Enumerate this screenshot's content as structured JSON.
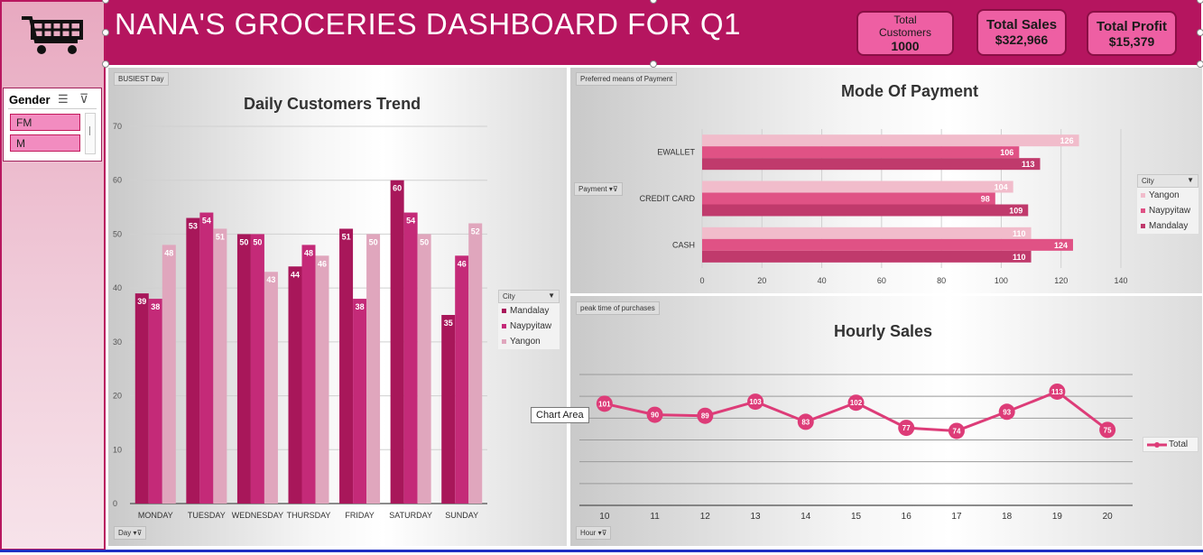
{
  "header": {
    "title": "NANA'S GROCERIES DASHBOARD FOR Q1",
    "kpis": [
      {
        "label": "Total Customers",
        "value": "1000"
      },
      {
        "label": "Total Sales",
        "value": "$322,966"
      },
      {
        "label": "Total Profit",
        "value": "$15,379"
      }
    ]
  },
  "slicer": {
    "title": "Gender",
    "items": [
      "FM",
      "M"
    ]
  },
  "daily_panel": {
    "tag": "BUSIEST  Day",
    "title": "Daily Customers Trend",
    "filter_label": "Day",
    "legend_title": "City"
  },
  "payment_panel": {
    "tag": "Preferred means of Payment",
    "title": "Mode Of Payment",
    "filter_label": "Payment",
    "legend_title": "City"
  },
  "hourly_panel": {
    "tag": "peak time of purchases",
    "title": "Hourly Sales",
    "filter_label": "Hour",
    "legend_label": "Total"
  },
  "tooltip": "Chart Area",
  "colors": {
    "header": "#b5155f",
    "mandalay": "#a8175a",
    "naypyitaw": "#c42a78",
    "yangon": "#e0a6bd",
    "pay_yangon": "#f1bccb",
    "pay_naypyitaw": "#e05285",
    "pay_mandalay": "#c03a6c",
    "line": "#dd3c78"
  },
  "chart_data": [
    {
      "type": "bar",
      "title": "Daily Customers Trend",
      "categories": [
        "MONDAY",
        "TUESDAY",
        "WEDNESDAY",
        "THURSDAY",
        "FRIDAY",
        "SATURDAY",
        "SUNDAY"
      ],
      "series": [
        {
          "name": "Mandalay",
          "values": [
            39,
            53,
            50,
            44,
            51,
            60,
            35
          ]
        },
        {
          "name": "Naypyitaw",
          "values": [
            38,
            54,
            50,
            48,
            38,
            54,
            46
          ]
        },
        {
          "name": "Yangon",
          "values": [
            48,
            51,
            43,
            46,
            50,
            50,
            52
          ]
        }
      ],
      "ylim": [
        0,
        70
      ],
      "yticks": [
        0,
        10,
        20,
        30,
        40,
        50,
        60,
        70
      ],
      "grid": true,
      "legend": "right"
    },
    {
      "type": "bar",
      "orientation": "horizontal",
      "title": "Mode Of Payment",
      "categories": [
        "EWALLET",
        "CREDIT CARD",
        "CASH"
      ],
      "series": [
        {
          "name": "Yangon",
          "values": [
            126,
            104,
            110
          ]
        },
        {
          "name": "Naypyitaw",
          "values": [
            106,
            98,
            124
          ]
        },
        {
          "name": "Mandalay",
          "values": [
            113,
            109,
            110
          ]
        }
      ],
      "xlim": [
        0,
        140
      ],
      "xticks": [
        0,
        20,
        40,
        60,
        80,
        100,
        120,
        140
      ],
      "grid": true,
      "legend": "right"
    },
    {
      "type": "line",
      "title": "Hourly Sales",
      "x": [
        10,
        11,
        12,
        13,
        14,
        15,
        16,
        17,
        18,
        19,
        20
      ],
      "series": [
        {
          "name": "Total",
          "values": [
            101,
            90,
            89,
            103,
            83,
            102,
            77,
            74,
            93,
            113,
            75
          ]
        }
      ],
      "grid": true,
      "legend": "right"
    }
  ]
}
